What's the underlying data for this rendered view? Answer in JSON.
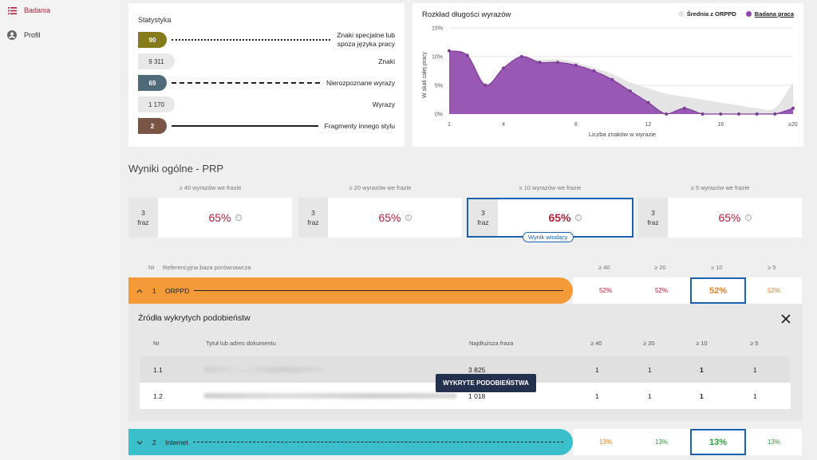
{
  "sidebar": {
    "items": [
      {
        "label": "Badania",
        "icon": "list-icon",
        "active": true
      },
      {
        "label": "Profil",
        "icon": "account-icon",
        "active": false
      }
    ]
  },
  "statistics": {
    "title": "Statystyka",
    "rows": [
      {
        "value": "90",
        "label_line1": "Znaki specjalne lub",
        "label_line2": "spoza języka pracy",
        "color": "#857b1a",
        "line": "dotted"
      },
      {
        "value": "9 311",
        "label_line1": "Znaki",
        "label_line2": "",
        "color": "#e8e8e8",
        "line": "none"
      },
      {
        "value": "69",
        "label_line1": "Nierozpoznane wyrazy",
        "label_line2": "",
        "color": "#4f6a79",
        "line": "dashed"
      },
      {
        "value": "1 170",
        "label_line1": "Wyrazy",
        "label_line2": "",
        "color": "#e8e8e8",
        "line": "none"
      },
      {
        "value": "2",
        "label_line1": "Fragmenty innego stylu",
        "label_line2": "",
        "color": "#7a5545",
        "line": "solid"
      }
    ]
  },
  "chart_data": {
    "type": "area",
    "title": "Rozkład długości wyrazów",
    "xlabel": "Liczba znaków w wyrazie",
    "ylabel": "W skali całej pracy",
    "x": [
      "1",
      "2",
      "3",
      "4",
      "5",
      "6",
      "7",
      "8",
      "9",
      "10",
      "11",
      "12",
      "13",
      "14",
      "15",
      "16",
      "17",
      "18",
      "19",
      "≥20"
    ],
    "x_ticks": [
      "1",
      "4",
      "8",
      "12",
      "16",
      "≥20"
    ],
    "y_ticks": [
      "0%",
      "5%",
      "10%",
      "15%"
    ],
    "ylim": [
      0,
      15
    ],
    "series": [
      {
        "name": "Średnia z ORPPD",
        "color": "#e4e4e4",
        "values": [
          11,
          10.5,
          5.5,
          7.5,
          9.5,
          9.5,
          9.5,
          9,
          8,
          7,
          5.5,
          4.5,
          3.5,
          3,
          2.5,
          2,
          1.5,
          1,
          1,
          5.5
        ]
      },
      {
        "name": "Badana praca",
        "color": "#8e44ad",
        "values": [
          11,
          10.2,
          5,
          8,
          10,
          9,
          9,
          8.5,
          7.5,
          6,
          4,
          2,
          0,
          1,
          0,
          0,
          0,
          0,
          0,
          1
        ]
      }
    ],
    "legend": "top-right",
    "grid": true
  },
  "results": {
    "title": "Wyniki ogólne - PRP",
    "columns": [
      {
        "head": "≥ 40 wyrazów we frazie",
        "count": "3",
        "unit": "fraz",
        "pct": "65%",
        "lead": false
      },
      {
        "head": "≥ 20 wyrazów we frazie",
        "count": "3",
        "unit": "fraz",
        "pct": "65%",
        "lead": false
      },
      {
        "head": "≥ 10 wyrazów we frazie",
        "count": "3",
        "unit": "fraz",
        "pct": "65%",
        "lead": true
      },
      {
        "head": "≥ 5 wyrazów we frazie",
        "count": "3",
        "unit": "fraz",
        "pct": "65%",
        "lead": false
      }
    ],
    "lead_badge": "Wynik wiodący",
    "info_glyph": "i"
  },
  "ref_table": {
    "headers": {
      "nr": "Nr",
      "base": "Referencyjna baza porównawcza",
      "c40": "≥ 40",
      "c20": "≥ 20",
      "c10": "≥ 10",
      "c5": "≥ 5"
    },
    "rows": [
      {
        "nr": "1",
        "name": "ORPPD",
        "color": "#f59a38",
        "chevron": "^",
        "line": "solid",
        "p40": "52%",
        "p20": "52%",
        "p10": "52%",
        "p5": "52%",
        "pct_color": "#b0213a",
        "lead_color": "#e8832a"
      },
      {
        "nr": "2",
        "name": "Internet",
        "color": "#3bbfca",
        "chevron": "v",
        "line": "dashed",
        "p40": "13%",
        "p20": "13%",
        "p10": "13%",
        "p5": "13%",
        "pct_color": "#e8832a",
        "lead_color": "#2e9e3b"
      }
    ]
  },
  "sources": {
    "title": "Źródła wykrytych podobieństw",
    "headers": {
      "nr": "Nr",
      "title": "Tytuł lub adres dokumentu",
      "phrase": "Najdłuższa fraza",
      "c40": "≥ 40",
      "c20": "≥ 20",
      "c10": "≥ 10",
      "c5": "≥ 5"
    },
    "rows": [
      {
        "nr": "1.1",
        "phrase": "3 825",
        "c40": "1",
        "c20": "1",
        "c10": "1",
        "c5": "1"
      },
      {
        "nr": "1.2",
        "phrase": "1 018",
        "c40": "1",
        "c20": "1",
        "c10": "1",
        "c5": "1"
      }
    ],
    "tooltip": "WYKRYTE PODOBIEŃSTWA"
  }
}
